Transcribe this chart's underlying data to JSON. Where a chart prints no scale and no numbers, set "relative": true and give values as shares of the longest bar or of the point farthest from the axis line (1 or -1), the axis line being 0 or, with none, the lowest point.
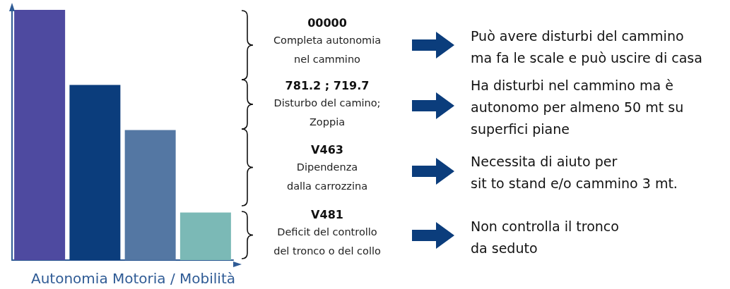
{
  "chart_data": {
    "type": "bar",
    "relative": true,
    "xlabel": "Autonomia Motoria / Mobilità",
    "categories": [
      null,
      null,
      null,
      null
    ],
    "values": [
      1,
      0.7,
      0.52,
      0.19
    ],
    "colors": [
      "#4e4aa0",
      "#0b3d7c",
      "#5477a3",
      "#7bb9b6"
    ],
    "annotations": [
      "00000",
      "Completa autonomia\nnel cammino",
      "Può avere disturbi del cammino\nma fa le scale e può uscire di casa",
      "781.2 ; 719.7",
      "Disturbo del camino;\nZoppia",
      "Ha disturbi nel cammino ma è\nautonomo per almeno 50 mt su\nsuperfici piane",
      "V463",
      "Dipendenza\ndalla carrozzina",
      "Necessita di aiuto per\nsit to stand e/o cammino 3 mt.",
      "V481",
      "Deficit del controllo\ndel tronco o del collo",
      "Non controlla il tronco\nda seduto"
    ]
  }
}
